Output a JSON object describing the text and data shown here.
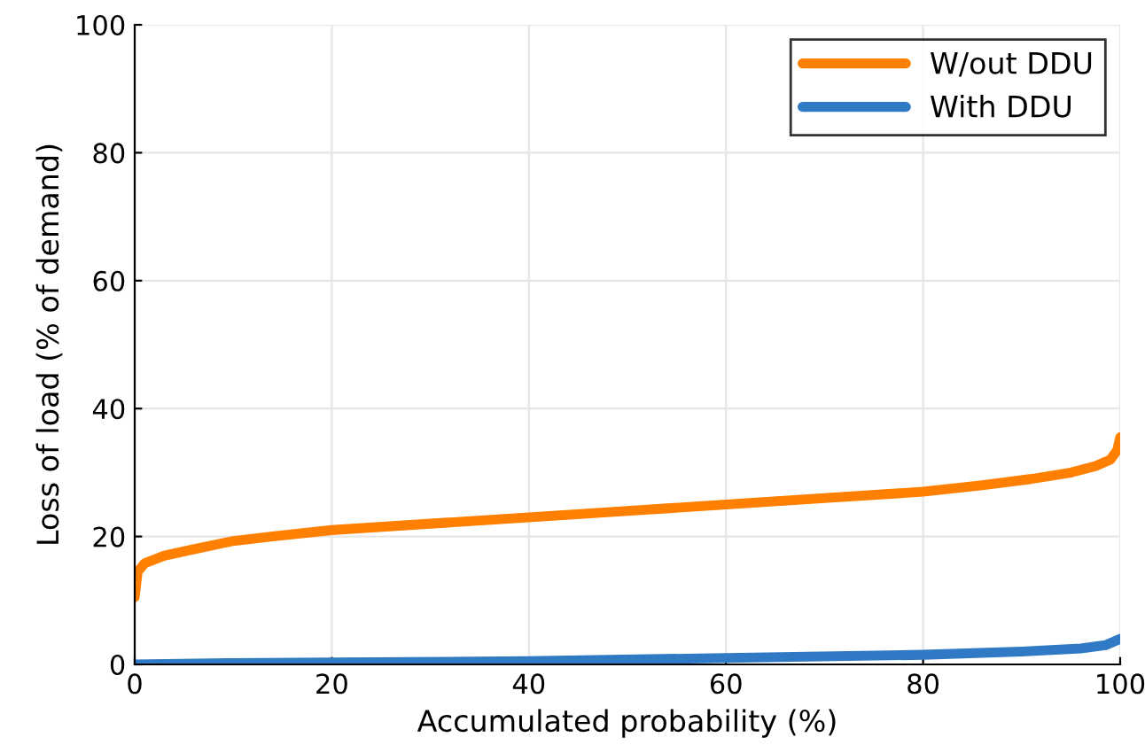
{
  "chart_data": {
    "type": "line",
    "xlabel": "Accumulated probability (%)",
    "ylabel": "Loss of load (% of demand)",
    "xlim": [
      0,
      100
    ],
    "ylim": [
      0,
      100
    ],
    "xticks": [
      0,
      20,
      40,
      60,
      80,
      100
    ],
    "yticks": [
      0,
      20,
      40,
      60,
      80,
      100
    ],
    "grid": true,
    "legend": "top right",
    "line_style": "solid",
    "marker": "none",
    "series": [
      {
        "name": "W/out DDU",
        "color": "#ff8000",
        "x": [
          0,
          0.3,
          1,
          3,
          6,
          10,
          14,
          20,
          30,
          40,
          50,
          60,
          70,
          80,
          86,
          91,
          95,
          97.5,
          99,
          99.7,
          100
        ],
        "values": [
          10.5,
          14.5,
          15.8,
          17,
          18,
          19.3,
          20,
          21,
          22,
          23,
          24,
          25,
          26,
          27,
          28,
          29,
          30,
          31,
          32,
          33.5,
          35.5
        ]
      },
      {
        "name": "With DDU",
        "color": "#3079c4",
        "x": [
          0,
          10,
          20,
          40,
          60,
          80,
          90,
          96,
          98.5,
          100
        ],
        "values": [
          0,
          0.2,
          0.3,
          0.5,
          1,
          1.5,
          2,
          2.5,
          3,
          4
        ]
      }
    ]
  }
}
